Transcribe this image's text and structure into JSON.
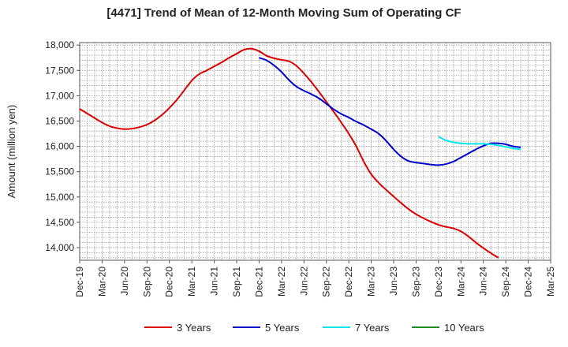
{
  "chart_data": {
    "type": "line",
    "title": "[4471]  Trend of Mean of 12-Month Moving Sum of Operating CF",
    "xlabel": "",
    "ylabel": "Amount (million yen)",
    "ylim": [
      13750,
      18050
    ],
    "yticks": [
      14000,
      14500,
      15000,
      15500,
      16000,
      16500,
      17000,
      17500,
      18000
    ],
    "ytick_labels": [
      "14,000",
      "14,500",
      "15,000",
      "15,500",
      "16,000",
      "16,500",
      "17,000",
      "17,500",
      "18,000"
    ],
    "x_categories": [
      "Dec-19",
      "Mar-20",
      "Jun-20",
      "Sep-20",
      "Dec-20",
      "Mar-21",
      "Jun-21",
      "Sep-21",
      "Dec-21",
      "Mar-22",
      "Jun-22",
      "Sep-22",
      "Dec-22",
      "Mar-23",
      "Jun-23",
      "Sep-23",
      "Dec-23",
      "Mar-24",
      "Jun-24",
      "Sep-24",
      "Dec-24",
      "Mar-25"
    ],
    "grid": true,
    "legend_position": "bottom",
    "series": [
      {
        "name": "3 Years",
        "color": "#dd0000",
        "start_index": 0,
        "values": [
          16740,
          16650,
          16560,
          16470,
          16400,
          16360,
          16340,
          16350,
          16380,
          16430,
          16510,
          16620,
          16760,
          16920,
          17110,
          17300,
          17430,
          17500,
          17580,
          17660,
          17750,
          17830,
          17910,
          17930,
          17880,
          17790,
          17740,
          17710,
          17680,
          17590,
          17440,
          17270,
          17080,
          16880,
          16680,
          16470,
          16250,
          16000,
          15700,
          15450,
          15280,
          15140,
          15010,
          14880,
          14760,
          14660,
          14580,
          14510,
          14450,
          14410,
          14380,
          14320,
          14220,
          14100,
          13990,
          13890,
          13800
        ]
      },
      {
        "name": "5 Years",
        "color": "#0000cc",
        "start_index": 24,
        "values": [
          17750,
          17700,
          17600,
          17470,
          17310,
          17180,
          17100,
          17030,
          16950,
          16840,
          16730,
          16640,
          16570,
          16490,
          16420,
          16340,
          16250,
          16110,
          15940,
          15800,
          15710,
          15680,
          15660,
          15640,
          15630,
          15650,
          15700,
          15780,
          15860,
          15940,
          16010,
          16060,
          16060,
          16040,
          16000,
          15980
        ]
      },
      {
        "name": "7 Years",
        "color": "#00e5ee",
        "start_index": 48,
        "values": [
          16190,
          16120,
          16080,
          16060,
          16050,
          16050,
          16050,
          16040,
          16020,
          15990,
          15960,
          15940
        ]
      },
      {
        "name": "10 Years",
        "color": "#228822",
        "start_index": 0,
        "values": []
      }
    ]
  }
}
